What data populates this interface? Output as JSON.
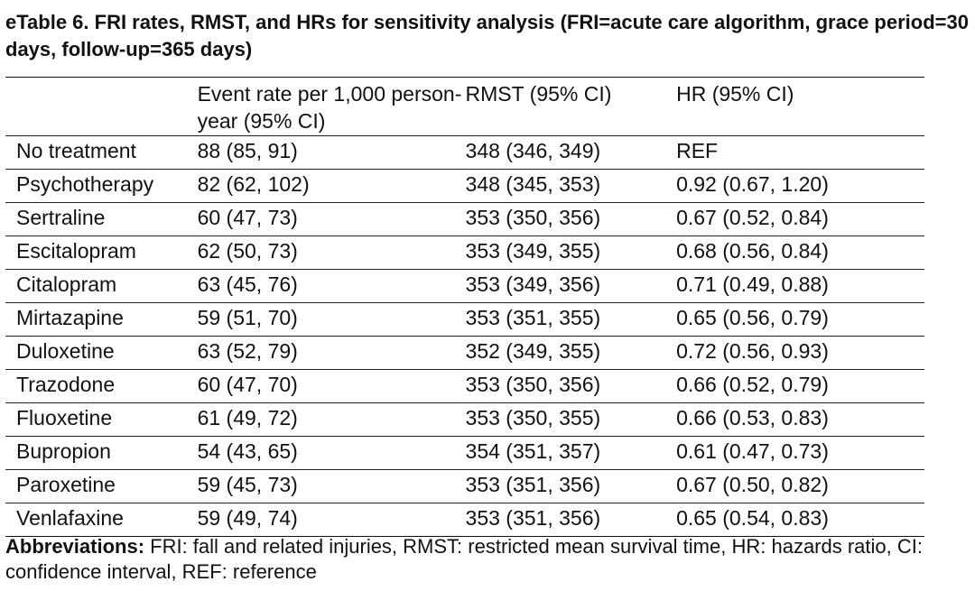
{
  "title": "eTable 6. FRI rates, RMST, and HRs for sensitivity analysis (FRI=acute care algorithm, grace period=30 days, follow-up=365 days)",
  "table": {
    "headers": [
      "",
      "Event rate per 1,000 person-year (95% CI)",
      "RMST (95% CI)",
      "HR (95% CI)"
    ],
    "rows": [
      [
        "No treatment",
        "88 (85, 91)",
        "348 (346, 349)",
        "REF"
      ],
      [
        "Psychotherapy",
        "82 (62, 102)",
        "348 (345, 353)",
        "0.92 (0.67, 1.20)"
      ],
      [
        "Sertraline",
        "60 (47, 73)",
        "353 (350, 356)",
        "0.67 (0.52, 0.84)"
      ],
      [
        "Escitalopram",
        "62 (50, 73)",
        "353 (349, 355)",
        "0.68 (0.56, 0.84)"
      ],
      [
        "Citalopram",
        "63 (45, 76)",
        "353 (349, 356)",
        "0.71 (0.49, 0.88)"
      ],
      [
        "Mirtazapine",
        "59 (51, 70)",
        "353 (351, 355)",
        "0.65 (0.56, 0.79)"
      ],
      [
        "Duloxetine",
        "63 (52, 79)",
        "352 (349, 355)",
        "0.72 (0.56, 0.93)"
      ],
      [
        "Trazodone",
        "60 (47, 70)",
        "353 (350, 356)",
        "0.66 (0.52, 0.79)"
      ],
      [
        "Fluoxetine",
        "61 (49, 72)",
        "353 (350, 355)",
        "0.66 (0.53, 0.83)"
      ],
      [
        "Bupropion",
        "54 (43, 65)",
        "354 (351, 357)",
        "0.61 (0.47, 0.73)"
      ],
      [
        "Paroxetine",
        "59 (45, 73)",
        "353 (351, 356)",
        "0.67 (0.50, 0.82)"
      ],
      [
        "Venlafaxine",
        "59 (49, 74)",
        "353 (351, 356)",
        "0.65 (0.54, 0.83)"
      ]
    ]
  },
  "footnote": {
    "label": "Abbreviations:",
    "text": " FRI: fall and related injuries, RMST: restricted mean survival time, HR: hazards ratio, CI: confidence interval, REF: reference"
  }
}
